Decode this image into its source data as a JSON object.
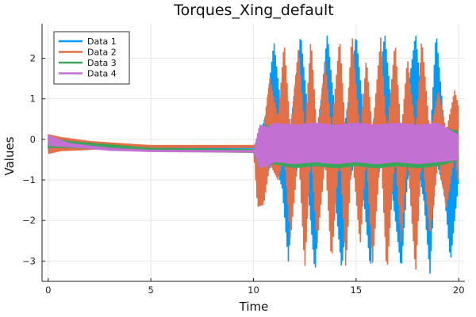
{
  "chart_data": {
    "type": "line",
    "title": "Torques_Xing_default",
    "xlabel": "Time",
    "ylabel": "Values",
    "xlim": [
      -0.3,
      20.3
    ],
    "ylim": [
      -3.5,
      2.85
    ],
    "xticks": [
      0,
      5,
      10,
      15,
      20
    ],
    "xtick_labels": [
      "0",
      "5",
      "10",
      "15",
      "20"
    ],
    "yticks": [
      -3,
      -2,
      -1,
      0,
      1,
      2
    ],
    "ytick_labels": [
      "−3",
      "−2",
      "−1",
      "0",
      "1",
      "2"
    ],
    "grid": true,
    "legend_position": "top-left",
    "series": [
      {
        "name": "Data 1",
        "color": "#009AFA",
        "envelope_note": "high-frequency oscillation; upper/lower envelope sampled at (t, upper, lower)",
        "envelope": [
          [
            0.0,
            0.05,
            -0.25
          ],
          [
            0.5,
            0.0,
            -0.2
          ],
          [
            2.0,
            -0.12,
            -0.22
          ],
          [
            5.0,
            -0.2,
            -0.22
          ],
          [
            10.0,
            -0.2,
            -0.22
          ],
          [
            10.3,
            0.1,
            -0.6
          ],
          [
            10.6,
            0.6,
            -0.9
          ],
          [
            11.0,
            2.4,
            -0.5
          ],
          [
            11.4,
            0.5,
            -1.2
          ],
          [
            11.7,
            -0.2,
            -3.0
          ],
          [
            12.0,
            1.2,
            -1.0
          ],
          [
            12.3,
            2.6,
            -0.4
          ],
          [
            12.7,
            0.4,
            -1.5
          ],
          [
            13.0,
            -0.1,
            -3.3
          ],
          [
            13.3,
            1.0,
            -1.0
          ],
          [
            13.6,
            2.6,
            -0.4
          ],
          [
            14.0,
            0.5,
            -1.6
          ],
          [
            14.3,
            -0.1,
            -3.2
          ],
          [
            14.7,
            1.2,
            -1.0
          ],
          [
            15.0,
            2.6,
            -0.4
          ],
          [
            15.4,
            0.4,
            -1.6
          ],
          [
            15.7,
            -0.1,
            -3.2
          ],
          [
            16.0,
            1.0,
            -1.0
          ],
          [
            16.4,
            2.6,
            -0.4
          ],
          [
            16.8,
            0.4,
            -1.5
          ],
          [
            17.2,
            -0.1,
            -3.2
          ],
          [
            17.5,
            1.1,
            -1.0
          ],
          [
            17.9,
            2.6,
            -0.4
          ],
          [
            18.3,
            0.4,
            -1.5
          ],
          [
            18.6,
            -0.1,
            -3.3
          ],
          [
            18.9,
            2.65,
            -0.5
          ],
          [
            19.3,
            0.3,
            -1.3
          ],
          [
            19.6,
            -0.1,
            -3.0
          ],
          [
            20.0,
            0.4,
            -1.0
          ]
        ]
      },
      {
        "name": "Data 2",
        "color": "#E26F46",
        "envelope": [
          [
            0.0,
            0.12,
            -0.35
          ],
          [
            0.6,
            0.05,
            -0.28
          ],
          [
            2.0,
            -0.05,
            -0.25
          ],
          [
            4.0,
            -0.12,
            -0.2
          ],
          [
            5.0,
            -0.15,
            -0.2
          ],
          [
            10.0,
            -0.15,
            -0.2
          ],
          [
            10.2,
            -0.1,
            -1.65
          ],
          [
            10.5,
            0.3,
            -1.6
          ],
          [
            10.8,
            1.5,
            -0.6
          ],
          [
            11.2,
            0.5,
            -1.0
          ],
          [
            11.5,
            2.4,
            -0.4
          ],
          [
            11.8,
            0.2,
            -2.5
          ],
          [
            12.2,
            2.3,
            -0.3
          ],
          [
            12.5,
            0.1,
            -3.2
          ],
          [
            12.8,
            2.5,
            -0.3
          ],
          [
            13.1,
            0.1,
            -2.6
          ],
          [
            13.5,
            1.9,
            -0.5
          ],
          [
            13.8,
            0.2,
            -3.0
          ],
          [
            14.2,
            2.5,
            -0.3
          ],
          [
            14.5,
            0.1,
            -3.2
          ],
          [
            14.8,
            2.6,
            -0.3
          ],
          [
            15.2,
            0.1,
            -2.6
          ],
          [
            15.5,
            2.0,
            -0.4
          ],
          [
            15.8,
            0.2,
            -3.1
          ],
          [
            16.2,
            2.5,
            -0.3
          ],
          [
            16.5,
            0.1,
            -3.3
          ],
          [
            16.9,
            2.4,
            -0.3
          ],
          [
            17.2,
            0.1,
            -2.6
          ],
          [
            17.5,
            2.0,
            -0.4
          ],
          [
            17.9,
            0.2,
            -3.3
          ],
          [
            18.2,
            2.5,
            -0.3
          ],
          [
            18.6,
            0.1,
            -2.4
          ],
          [
            19.0,
            1.2,
            -0.5
          ],
          [
            19.4,
            0.2,
            -1.7
          ],
          [
            19.8,
            1.2,
            -0.4
          ],
          [
            20.0,
            0.8,
            -1.2
          ]
        ]
      },
      {
        "name": "Data 3",
        "color": "#3BA55C",
        "envelope": [
          [
            0.0,
            0.05,
            -0.2
          ],
          [
            1.0,
            -0.05,
            -0.2
          ],
          [
            5.0,
            -0.22,
            -0.28
          ],
          [
            10.0,
            -0.25,
            -0.32
          ],
          [
            10.3,
            0.2,
            -0.7
          ],
          [
            10.6,
            0.35,
            -0.65
          ],
          [
            11.0,
            0.3,
            -0.6
          ],
          [
            12.0,
            0.35,
            -0.7
          ],
          [
            13.0,
            0.3,
            -0.65
          ],
          [
            14.0,
            0.35,
            -0.7
          ],
          [
            15.0,
            0.3,
            -0.65
          ],
          [
            16.0,
            0.35,
            -0.7
          ],
          [
            17.0,
            0.3,
            -0.65
          ],
          [
            18.0,
            0.35,
            -0.7
          ],
          [
            19.0,
            0.3,
            -0.65
          ],
          [
            20.0,
            0.2,
            -0.5
          ]
        ]
      },
      {
        "name": "Data 4",
        "color": "#C271D2",
        "envelope": [
          [
            0.0,
            0.1,
            -0.15
          ],
          [
            1.0,
            -0.1,
            -0.18
          ],
          [
            3.0,
            -0.22,
            -0.27
          ],
          [
            5.0,
            -0.27,
            -0.3
          ],
          [
            10.0,
            -0.28,
            -0.32
          ],
          [
            10.3,
            0.35,
            -0.7
          ],
          [
            10.7,
            0.3,
            -0.65
          ],
          [
            11.0,
            0.4,
            -0.55
          ],
          [
            12.0,
            0.35,
            -0.6
          ],
          [
            13.0,
            0.4,
            -0.55
          ],
          [
            14.0,
            0.35,
            -0.6
          ],
          [
            15.0,
            0.4,
            -0.55
          ],
          [
            16.0,
            0.35,
            -0.6
          ],
          [
            17.0,
            0.4,
            -0.55
          ],
          [
            18.0,
            0.35,
            -0.6
          ],
          [
            19.0,
            0.4,
            -0.55
          ],
          [
            20.0,
            0.1,
            -0.5
          ]
        ]
      }
    ]
  }
}
